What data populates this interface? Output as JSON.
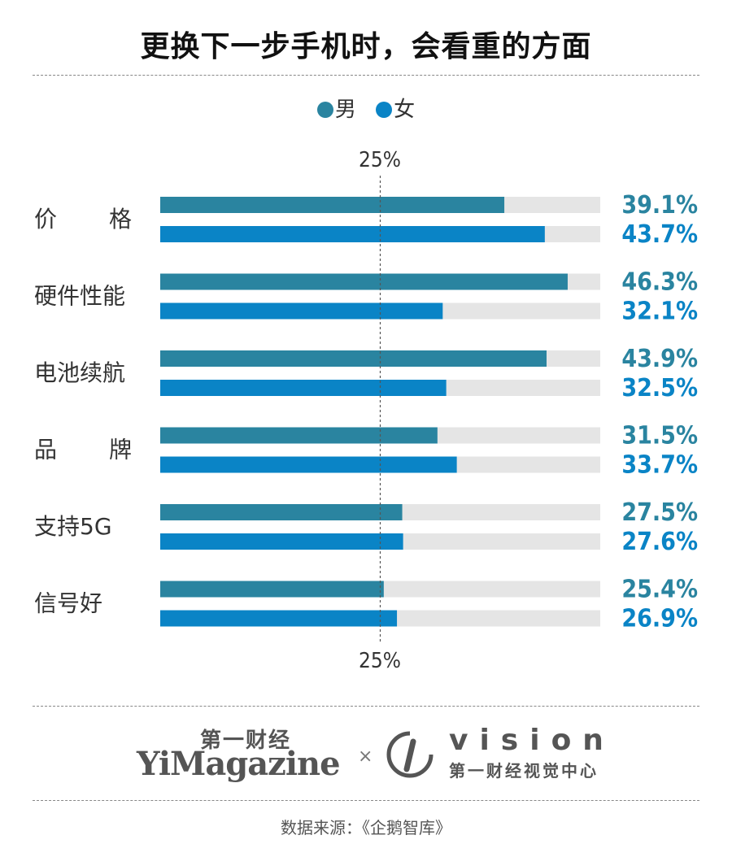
{
  "title": "更换下一步手机时，会看重的方面",
  "legend": [
    {
      "name": "男",
      "color": "#2a84a0"
    },
    {
      "name": "女",
      "color": "#0a84c6"
    }
  ],
  "reference_label": "25%",
  "chart_data": {
    "type": "bar",
    "orientation": "horizontal",
    "categories": [
      "价　格",
      "硬件性能",
      "电池续航",
      "品　牌",
      "支持5G",
      "信号好"
    ],
    "series": [
      {
        "name": "男",
        "color": "#2a84a0",
        "values": [
          39.1,
          46.3,
          43.9,
          31.5,
          27.5,
          25.4
        ]
      },
      {
        "name": "女",
        "color": "#0a84c6",
        "values": [
          43.7,
          32.1,
          32.5,
          33.7,
          27.6,
          26.9
        ]
      }
    ],
    "value_labels": {
      "男": [
        "39.1%",
        "46.3%",
        "43.9%",
        "31.5%",
        "27.5%",
        "25.4%"
      ],
      "女": [
        "43.7%",
        "32.1%",
        "32.5%",
        "33.7%",
        "27.6%",
        "26.9%"
      ]
    },
    "xlim": [
      0,
      50
    ],
    "reference_line": 25,
    "track_color": "#e5e5e5"
  },
  "branding": {
    "yi_cn": "第一财经",
    "yi_en": "YiMagazine",
    "separator": "×",
    "vision_en": "vision",
    "vision_cn": "第一财经视觉中心"
  },
  "source": "数据来源：《企鹅智库》"
}
